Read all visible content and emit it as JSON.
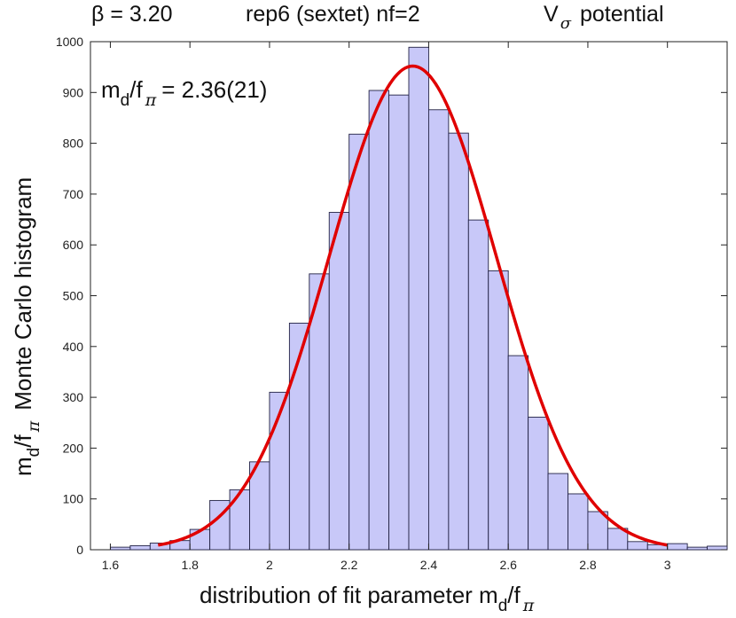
{
  "header": {
    "beta_label": "β = 3.20",
    "rep_label": "rep6 (sextet)  nf=2",
    "potential_label": "V",
    "potential_sub": "σ",
    "potential_suffix": "potential"
  },
  "annotation": {
    "main": "m",
    "sub1": "d",
    "mid": "/f",
    "sub2": "π",
    "value": "= 2.36(21)"
  },
  "colors": {
    "bar_fill": "#c8c8f8",
    "bar_stroke": "#222244",
    "fit_curve": "#e00000"
  },
  "chart_data": {
    "type": "bar",
    "title": "",
    "xlabel": "distribution of fit parameter  m_d/f_π",
    "ylabel": "m_d/f_π  Monte Carlo histogram",
    "xlim": [
      1.55,
      3.15
    ],
    "ylim": [
      0,
      1000
    ],
    "xticks": [
      "1.6",
      "1.8",
      "2",
      "2.2",
      "2.4",
      "2.6",
      "2.8",
      "3"
    ],
    "yticks": [
      "0",
      "100",
      "200",
      "300",
      "400",
      "500",
      "600",
      "700",
      "800",
      "900",
      "1000"
    ],
    "bin_width": 0.05,
    "bin_centers": [
      1.625,
      1.675,
      1.725,
      1.775,
      1.825,
      1.875,
      1.925,
      1.975,
      2.025,
      2.075,
      2.125,
      2.175,
      2.225,
      2.275,
      2.325,
      2.375,
      2.425,
      2.475,
      2.525,
      2.575,
      2.625,
      2.675,
      2.725,
      2.775,
      2.825,
      2.875,
      2.925,
      2.975,
      3.025,
      3.075,
      3.125
    ],
    "counts": [
      5,
      8,
      13,
      18,
      40,
      97,
      118,
      173,
      310,
      446,
      543,
      664,
      818,
      904,
      895,
      989,
      866,
      820,
      649,
      549,
      382,
      261,
      150,
      110,
      75,
      42,
      16,
      10,
      12,
      5,
      7
    ],
    "fit": {
      "type": "gaussian",
      "mean": 2.36,
      "sigma": 0.21,
      "peak": 952,
      "x_range": [
        1.72,
        3.0
      ]
    },
    "grid": false,
    "legend": "none"
  },
  "axis_labels": {
    "x_text": "distribution of fit parameter  m",
    "x_sub1": "d",
    "x_mid": "/f",
    "x_sub2": "π",
    "y_m": "m",
    "y_sub1": "d",
    "y_mid": "/f",
    "y_sub2": "π",
    "y_text": "Monte Carlo histogram"
  }
}
